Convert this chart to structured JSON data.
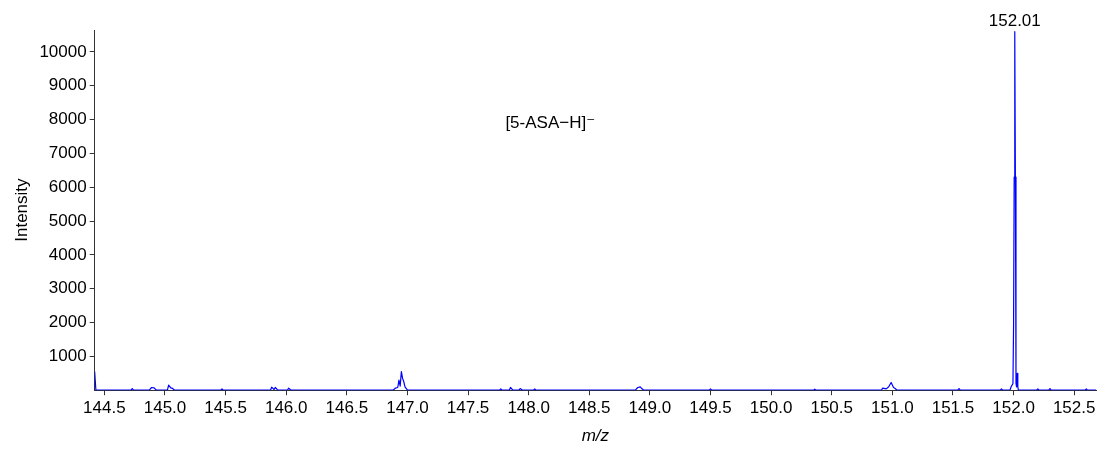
{
  "chart_data": {
    "type": "line",
    "xlabel": "m/z",
    "ylabel": "Intensity",
    "xlim": [
      144.42,
      152.68
    ],
    "ylim": [
      0,
      10650
    ],
    "xticks": [
      {
        "value": 144.5,
        "label": "144.5"
      },
      {
        "value": 145,
        "label": "145.0"
      },
      {
        "value": 145.5,
        "label": "145.5"
      },
      {
        "value": 146,
        "label": "146.0"
      },
      {
        "value": 146.5,
        "label": "146.5"
      },
      {
        "value": 147,
        "label": "147.0"
      },
      {
        "value": 147.5,
        "label": "147.5"
      },
      {
        "value": 148,
        "label": "148.0"
      },
      {
        "value": 148.5,
        "label": "148.5"
      },
      {
        "value": 149,
        "label": "149.0"
      },
      {
        "value": 149.5,
        "label": "149.5"
      },
      {
        "value": 150,
        "label": "150.0"
      },
      {
        "value": 150.5,
        "label": "150.5"
      },
      {
        "value": 151,
        "label": "151.0"
      },
      {
        "value": 151.5,
        "label": "151.5"
      },
      {
        "value": 152,
        "label": "152.0"
      },
      {
        "value": 152.5,
        "label": "152.5"
      }
    ],
    "yticks": [
      1000,
      2000,
      3000,
      4000,
      5000,
      6000,
      7000,
      8000,
      9000,
      10000
    ],
    "grid": false,
    "legend": false,
    "marker": "none",
    "line_style": "solid",
    "annotations": [
      "[5-ASA−H]⁻",
      {
        "text": "152.01",
        "x": 152.01,
        "y": 10600
      }
    ],
    "series": [
      {
        "color": "#0000ff",
        "x": [
          144.42,
          144.43,
          144.72,
          144.73,
          144.74,
          144.87,
          144.89,
          144.91,
          144.93,
          145.02,
          145.03,
          145.05,
          145.06,
          145.08,
          145.46,
          145.47,
          145.48,
          145.87,
          145.88,
          145.9,
          145.91,
          145.93,
          146.01,
          146.02,
          146.04,
          146.88,
          146.9,
          146.92,
          146.93,
          146.94,
          146.95,
          146.96,
          146.97,
          146.98,
          147.0,
          147.76,
          147.77,
          147.78,
          147.84,
          147.85,
          147.87,
          147.92,
          147.93,
          147.95,
          148.04,
          148.05,
          148.06,
          148.88,
          148.9,
          148.92,
          148.93,
          148.95,
          149.49,
          149.5,
          149.51,
          150.35,
          150.36,
          150.37,
          150.91,
          150.92,
          150.95,
          150.97,
          150.99,
          151.01,
          151.02,
          151.04,
          151.54,
          151.55,
          151.56,
          151.89,
          151.9,
          151.91,
          151.97,
          151.98,
          151.995,
          152.0,
          152.005,
          152.01,
          152.015,
          152.02,
          152.025,
          152.03,
          152.035,
          152.04,
          152.19,
          152.2,
          152.21,
          152.29,
          152.3,
          152.31,
          152.59,
          152.6,
          152.61,
          152.68
        ],
        "values": [
          550,
          0,
          0,
          50,
          0,
          0,
          80,
          70,
          0,
          0,
          150,
          60,
          60,
          0,
          0,
          40,
          0,
          0,
          90,
          20,
          80,
          0,
          0,
          60,
          0,
          0,
          60,
          80,
          300,
          120,
          550,
          350,
          250,
          100,
          0,
          0,
          40,
          0,
          0,
          80,
          0,
          0,
          50,
          0,
          0,
          40,
          0,
          0,
          80,
          100,
          60,
          0,
          0,
          40,
          0,
          0,
          30,
          0,
          0,
          60,
          40,
          100,
          230,
          80,
          60,
          0,
          0,
          50,
          0,
          0,
          40,
          0,
          0,
          100,
          200,
          1900,
          6300,
          10600,
          6300,
          200,
          100,
          500,
          100,
          0,
          0,
          40,
          0,
          0,
          50,
          0,
          0,
          40,
          0,
          0
        ]
      }
    ]
  }
}
